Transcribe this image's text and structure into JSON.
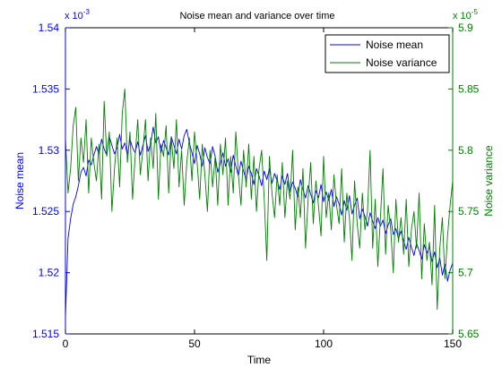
{
  "chart_data": {
    "type": "line",
    "title": "Noise mean and variance over time",
    "xlabel": "Time",
    "xlim": [
      0,
      150
    ],
    "x_ticks": [
      "0",
      "50",
      "100",
      "150"
    ],
    "y_left": {
      "label": "Noise mean",
      "color": "#0000ff",
      "multiplier_label": "x 10",
      "multiplier_exponent": "-3",
      "ylim": [
        1.515,
        1.54
      ],
      "ticks": [
        "1.515",
        "1.52",
        "1.525",
        "1.53",
        "1.535",
        "1.54"
      ]
    },
    "y_right": {
      "label": "Noise variance",
      "color": "#007f00",
      "multiplier_label": "x 10",
      "multiplier_exponent": "-5",
      "ylim": [
        5.65,
        5.9
      ],
      "ticks": [
        "5.65",
        "5.7",
        "5.75",
        "5.8",
        "5.85",
        "5.9"
      ]
    },
    "legend": {
      "position": "top-right",
      "entries": [
        "Noise mean",
        "Noise variance"
      ]
    },
    "grid": false,
    "series": [
      {
        "name": "Noise mean",
        "axis": "left",
        "color": "#0000ff",
        "x": [
          0,
          1,
          2,
          3,
          4,
          5,
          6,
          7,
          8,
          9,
          10,
          11,
          12,
          13,
          14,
          15,
          16,
          17,
          18,
          19,
          20,
          21,
          22,
          23,
          24,
          25,
          26,
          27,
          28,
          29,
          30,
          31,
          32,
          33,
          34,
          35,
          36,
          37,
          38,
          39,
          40,
          41,
          42,
          43,
          44,
          45,
          46,
          47,
          48,
          49,
          50,
          51,
          52,
          53,
          54,
          55,
          56,
          57,
          58,
          59,
          60,
          61,
          62,
          63,
          64,
          65,
          66,
          67,
          68,
          69,
          70,
          71,
          72,
          73,
          74,
          75,
          76,
          77,
          78,
          79,
          80,
          81,
          82,
          83,
          84,
          85,
          86,
          87,
          88,
          89,
          90,
          91,
          92,
          93,
          94,
          95,
          96,
          97,
          98,
          99,
          100,
          101,
          102,
          103,
          104,
          105,
          106,
          107,
          108,
          109,
          110,
          111,
          112,
          113,
          114,
          115,
          116,
          117,
          118,
          119,
          120,
          121,
          122,
          123,
          124,
          125,
          126,
          127,
          128,
          129,
          130,
          131,
          132,
          133,
          134,
          135,
          136,
          137,
          138,
          139,
          140,
          141,
          142,
          143,
          144,
          145,
          146,
          147,
          148,
          149,
          150
        ],
        "y": [
          1.5163,
          1.5228,
          1.5244,
          1.5256,
          1.5262,
          1.5271,
          1.5282,
          1.5286,
          1.5279,
          1.5292,
          1.5288,
          1.5296,
          1.5303,
          1.5297,
          1.5309,
          1.5301,
          1.5296,
          1.5311,
          1.5304,
          1.5297,
          1.5302,
          1.5313,
          1.5301,
          1.5306,
          1.5296,
          1.5309,
          1.5302,
          1.5298,
          1.5307,
          1.5296,
          1.5304,
          1.5312,
          1.5299,
          1.5305,
          1.5319,
          1.5306,
          1.5311,
          1.5298,
          1.5308,
          1.5302,
          1.5296,
          1.5311,
          1.5304,
          1.5297,
          1.5309,
          1.5301,
          1.5312,
          1.5317,
          1.5306,
          1.5298,
          1.5289,
          1.5304,
          1.5297,
          1.5287,
          1.5302,
          1.5294,
          1.5289,
          1.5303,
          1.5295,
          1.5282,
          1.5289,
          1.5298,
          1.5287,
          1.5293,
          1.5282,
          1.5296,
          1.5287,
          1.5279,
          1.5291,
          1.5283,
          1.5276,
          1.5287,
          1.5281,
          1.5272,
          1.5285,
          1.5279,
          1.5271,
          1.5283,
          1.5276,
          1.5285,
          1.5273,
          1.5281,
          1.5275,
          1.5268,
          1.5279,
          1.5272,
          1.5281,
          1.5266,
          1.5274,
          1.5269,
          1.5262,
          1.5276,
          1.5268,
          1.5261,
          1.5271,
          1.5264,
          1.5257,
          1.5267,
          1.5261,
          1.5272,
          1.5258,
          1.5266,
          1.5259,
          1.5268,
          1.5254,
          1.5262,
          1.5256,
          1.5247,
          1.5259,
          1.5251,
          1.5263,
          1.5248,
          1.5255,
          1.5261,
          1.5244,
          1.5252,
          1.5246,
          1.5238,
          1.5249,
          1.5242,
          1.5236,
          1.5245,
          1.5238,
          1.5243,
          1.5232,
          1.5239,
          1.5244,
          1.5231,
          1.5236,
          1.5228,
          1.5234,
          1.5226,
          1.5219,
          1.5229,
          1.5221,
          1.5214,
          1.5224,
          1.5218,
          1.5211,
          1.5223,
          1.5216,
          1.5221,
          1.5209,
          1.5217,
          1.5204,
          1.5212,
          1.5198,
          1.5207,
          1.5193,
          1.5202,
          1.5208
        ]
      },
      {
        "name": "Noise variance",
        "axis": "right",
        "color": "#007f00",
        "x": [
          0,
          1,
          2,
          3,
          4,
          5,
          6,
          7,
          8,
          9,
          10,
          11,
          12,
          13,
          14,
          15,
          16,
          17,
          18,
          19,
          20,
          21,
          22,
          23,
          24,
          25,
          26,
          27,
          28,
          29,
          30,
          31,
          32,
          33,
          34,
          35,
          36,
          37,
          38,
          39,
          40,
          41,
          42,
          43,
          44,
          45,
          46,
          47,
          48,
          49,
          50,
          51,
          52,
          53,
          54,
          55,
          56,
          57,
          58,
          59,
          60,
          61,
          62,
          63,
          64,
          65,
          66,
          67,
          68,
          69,
          70,
          71,
          72,
          73,
          74,
          75,
          76,
          77,
          78,
          79,
          80,
          81,
          82,
          83,
          84,
          85,
          86,
          87,
          88,
          89,
          90,
          91,
          92,
          93,
          94,
          95,
          96,
          97,
          98,
          99,
          100,
          101,
          102,
          103,
          104,
          105,
          106,
          107,
          108,
          109,
          110,
          111,
          112,
          113,
          114,
          115,
          116,
          117,
          118,
          119,
          120,
          121,
          122,
          123,
          124,
          125,
          126,
          127,
          128,
          129,
          130,
          131,
          132,
          133,
          134,
          135,
          136,
          137,
          138,
          139,
          140,
          141,
          142,
          143,
          144,
          145,
          146,
          147,
          148,
          149,
          150
        ],
        "y": [
          5.81,
          5.765,
          5.785,
          5.82,
          5.835,
          5.775,
          5.81,
          5.79,
          5.825,
          5.765,
          5.81,
          5.79,
          5.775,
          5.805,
          5.76,
          5.84,
          5.795,
          5.815,
          5.75,
          5.785,
          5.81,
          5.77,
          5.83,
          5.85,
          5.79,
          5.815,
          5.76,
          5.795,
          5.825,
          5.78,
          5.8,
          5.825,
          5.775,
          5.81,
          5.785,
          5.83,
          5.76,
          5.805,
          5.795,
          5.82,
          5.765,
          5.81,
          5.785,
          5.825,
          5.77,
          5.8,
          5.755,
          5.79,
          5.81,
          5.775,
          5.815,
          5.79,
          5.76,
          5.805,
          5.78,
          5.75,
          5.8,
          5.77,
          5.795,
          5.755,
          5.805,
          5.78,
          5.81,
          5.755,
          5.795,
          5.765,
          5.815,
          5.78,
          5.755,
          5.8,
          5.77,
          5.805,
          5.76,
          5.795,
          5.75,
          5.785,
          5.8,
          5.76,
          5.71,
          5.795,
          5.765,
          5.745,
          5.78,
          5.755,
          5.79,
          5.745,
          5.775,
          5.76,
          5.8,
          5.735,
          5.77,
          5.745,
          5.785,
          5.72,
          5.76,
          5.79,
          5.74,
          5.775,
          5.755,
          5.73,
          5.795,
          5.745,
          5.765,
          5.735,
          5.78,
          5.755,
          5.74,
          5.785,
          5.725,
          5.765,
          5.745,
          5.71,
          5.775,
          5.74,
          5.72,
          5.765,
          5.735,
          5.75,
          5.8,
          5.72,
          5.76,
          5.705,
          5.745,
          5.785,
          5.715,
          5.755,
          5.735,
          5.7,
          5.76,
          5.725,
          5.745,
          5.715,
          5.76,
          5.705,
          5.735,
          5.75,
          5.72,
          5.765,
          5.695,
          5.74,
          5.71,
          5.725,
          5.69,
          5.755,
          5.67,
          5.72,
          5.745,
          5.695,
          5.73,
          5.755,
          5.775
        ]
      }
    ]
  }
}
